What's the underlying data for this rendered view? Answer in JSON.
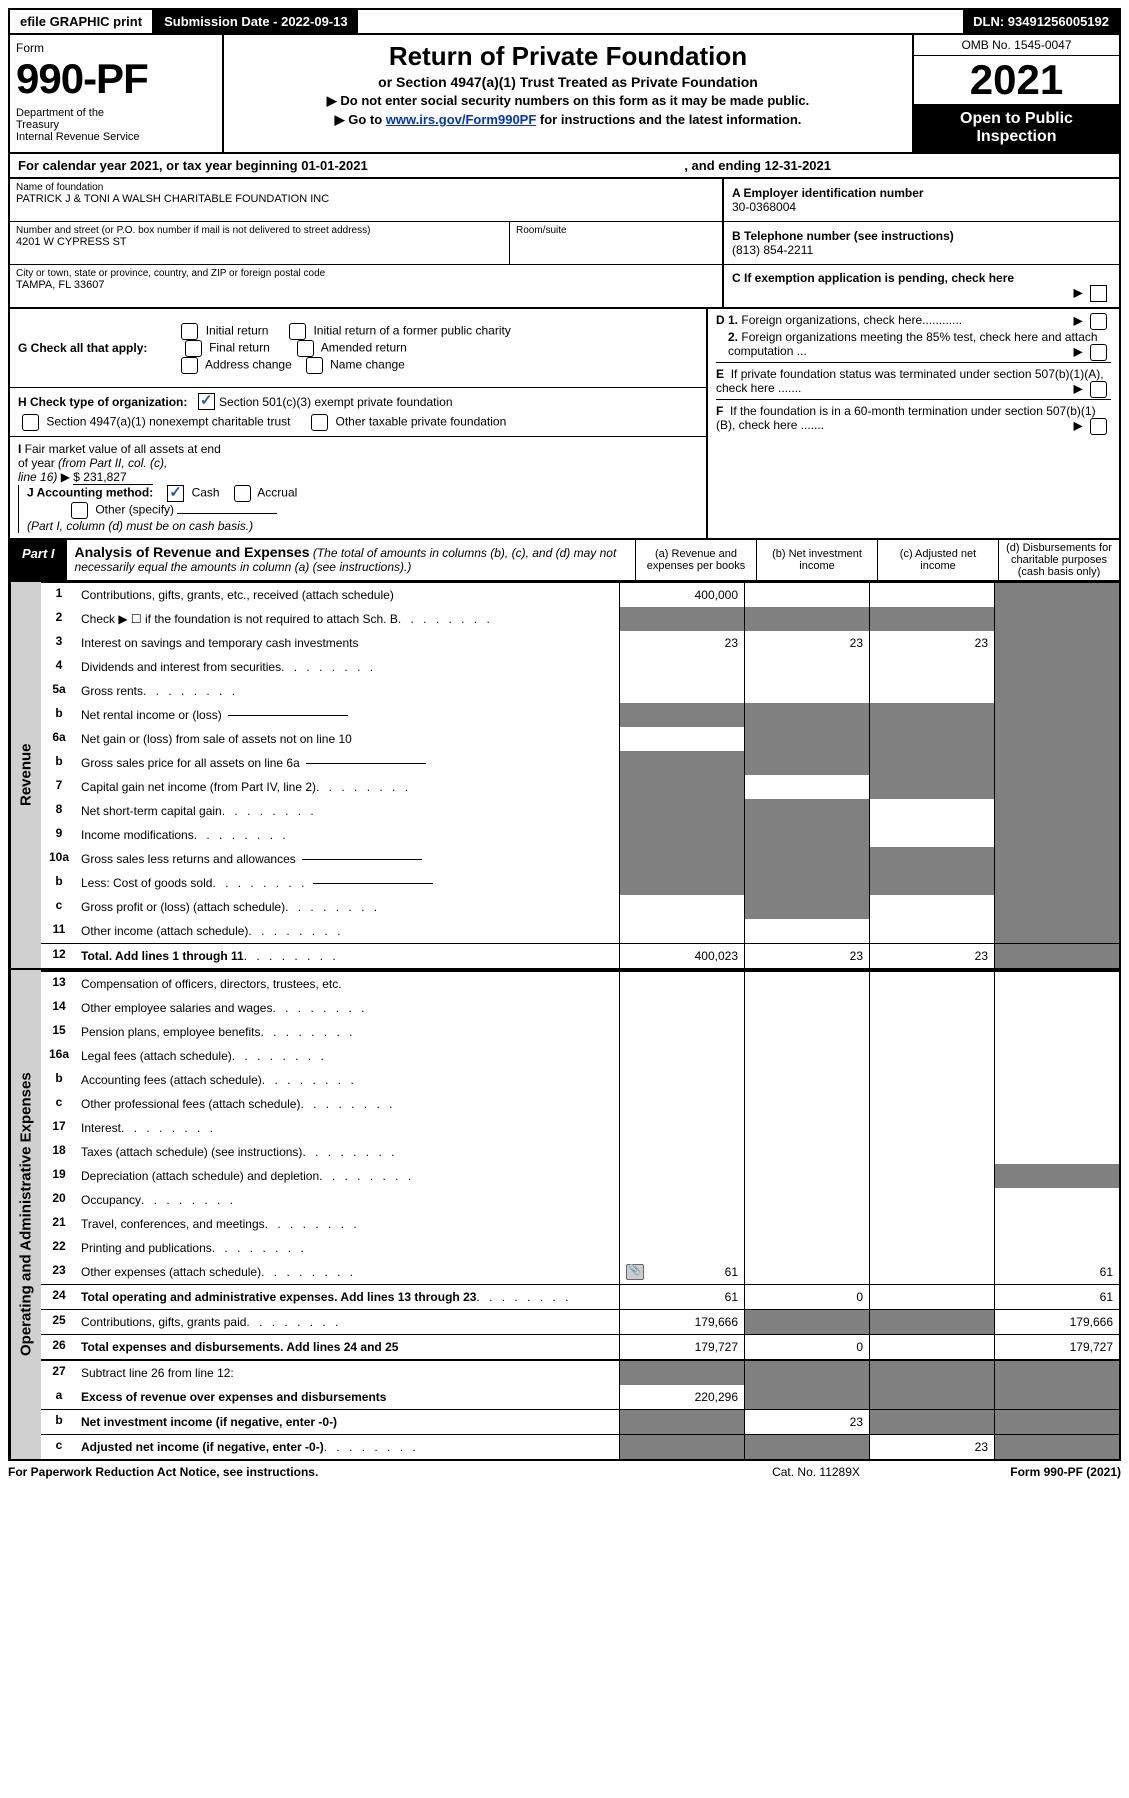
{
  "top_bar": {
    "efile": "efile GRAPHIC print",
    "sub_date_label": "Submission Date - 2022-09-13",
    "dln": "DLN: 93491256005192"
  },
  "header": {
    "form_word": "Form",
    "form_no": "990-PF",
    "dept": "Department of the Treasury\nInternal Revenue Service",
    "title": "Return of Private Foundation",
    "sub1": "or Section 4947(a)(1) Trust Treated as Private Foundation",
    "sub2": "▶ Do not enter social security numbers on this form as it may be made public.",
    "sub3": "▶ Go to www.irs.gov/Form990PF for instructions and the latest information.",
    "irs_link": "www.irs.gov/Form990PF",
    "omb": "OMB No. 1545-0047",
    "year": "2021",
    "open": "Open to Public Inspection"
  },
  "cal_year": {
    "prefix": "For calendar year 2021, or tax year beginning 01-01-2021",
    "mid": ", and ending 12-31-2021"
  },
  "entity": {
    "name_label": "Name of foundation",
    "name": "PATRICK J & TONI A WALSH CHARITABLE FOUNDATION INC",
    "street_label": "Number and street (or P.O. box number if mail is not delivered to street address)",
    "street": "4201 W CYPRESS ST",
    "room_label": "Room/suite",
    "city_label": "City or town, state or province, country, and ZIP or foreign postal code",
    "city": "TAMPA, FL  33607",
    "a_label": "A Employer identification number",
    "a_val": "30-0368004",
    "b_label": "B Telephone number (see instructions)",
    "b_val": "(813) 854-2211",
    "c_label": "C If exemption application is pending, check here"
  },
  "checks": {
    "g_label": "G Check all that apply:",
    "g_opts": [
      "Initial return",
      "Initial return of a former public charity",
      "Final return",
      "Amended return",
      "Address change",
      "Name change"
    ],
    "h_label": "H Check type of organization:",
    "h_opts": [
      "Section 501(c)(3) exempt private foundation",
      "Section 4947(a)(1) nonexempt charitable trust",
      "Other taxable private foundation"
    ],
    "i_label": "I Fair market value of all assets at end of year (from Part II, col. (c), line 16) ▶",
    "i_val": "$  231,827",
    "j_label": "J Accounting method:",
    "j_opts": [
      "Cash",
      "Accrual",
      "Other (specify)"
    ],
    "j_note": "(Part I, column (d) must be on cash basis.)",
    "d_label": "D 1. Foreign organizations, check here............",
    "d2_label": "2. Foreign organizations meeting the 85% test, check here and attach computation ...",
    "e_label": "E  If private foundation status was terminated under section 507(b)(1)(A), check here .......",
    "f_label": "F  If the foundation is in a 60-month termination under section 507(b)(1)(B), check here ......."
  },
  "part1": {
    "label": "Part I",
    "title": "Analysis of Revenue and Expenses",
    "note": "(The total of amounts in columns (b), (c), and (d) may not necessarily equal the amounts in column (a) (see instructions).)",
    "cols": {
      "a": "(a) Revenue and expenses per books",
      "b": "(b) Net investment income",
      "c": "(c) Adjusted net income",
      "d": "(d) Disbursements for charitable purposes (cash basis only)"
    }
  },
  "side_labels": {
    "rev": "Revenue",
    "exp": "Operating and Administrative Expenses"
  },
  "rows": [
    {
      "ln": "1",
      "desc": "Contributions, gifts, grants, etc., received (attach schedule)",
      "a": "400,000",
      "b": "",
      "c": "",
      "d": "",
      "bt": true,
      "shade_d": true
    },
    {
      "ln": "2",
      "desc": "Check ▶ ☐ if the foundation is not required to attach Sch. B",
      "a": "",
      "b": "",
      "c": "",
      "d": "",
      "shade_all": true,
      "dots": true
    },
    {
      "ln": "3",
      "desc": "Interest on savings and temporary cash investments",
      "a": "23",
      "b": "23",
      "c": "23",
      "d": "",
      "shade_d": true
    },
    {
      "ln": "4",
      "desc": "Dividends and interest from securities",
      "a": "",
      "b": "",
      "c": "",
      "d": "",
      "dots": true,
      "shade_d": true
    },
    {
      "ln": "5a",
      "desc": "Gross rents",
      "a": "",
      "b": "",
      "c": "",
      "d": "",
      "dots": true,
      "shade_d": true
    },
    {
      "ln": "b",
      "desc": "Net rental income or (loss)",
      "a": "",
      "b": "",
      "c": "",
      "d": "",
      "inline_box": true,
      "shade_all": true
    },
    {
      "ln": "6a",
      "desc": "Net gain or (loss) from sale of assets not on line 10",
      "a": "",
      "b": "",
      "c": "",
      "d": "",
      "shade_bcd": true
    },
    {
      "ln": "b",
      "desc": "Gross sales price for all assets on line 6a",
      "a": "",
      "b": "",
      "c": "",
      "d": "",
      "inline_box": true,
      "shade_all": true
    },
    {
      "ln": "7",
      "desc": "Capital gain net income (from Part IV, line 2)",
      "a": "",
      "b": "",
      "c": "",
      "d": "",
      "dots": true,
      "shade_a": true,
      "shade_cd": true
    },
    {
      "ln": "8",
      "desc": "Net short-term capital gain",
      "a": "",
      "b": "",
      "c": "",
      "d": "",
      "dots": true,
      "shade_ab": true,
      "shade_d": true
    },
    {
      "ln": "9",
      "desc": "Income modifications",
      "a": "",
      "b": "",
      "c": "",
      "d": "",
      "dots": true,
      "shade_ab": true,
      "shade_d": true
    },
    {
      "ln": "10a",
      "desc": "Gross sales less returns and allowances",
      "a": "",
      "b": "",
      "c": "",
      "d": "",
      "inline_box": true,
      "shade_all": true
    },
    {
      "ln": "b",
      "desc": "Less: Cost of goods sold",
      "a": "",
      "b": "",
      "c": "",
      "d": "",
      "dots": true,
      "inline_box": true,
      "shade_all": true
    },
    {
      "ln": "c",
      "desc": "Gross profit or (loss) (attach schedule)",
      "a": "",
      "b": "",
      "c": "",
      "d": "",
      "dots": true,
      "shade_b": true,
      "shade_d": true
    },
    {
      "ln": "11",
      "desc": "Other income (attach schedule)",
      "a": "",
      "b": "",
      "c": "",
      "d": "",
      "dots": true,
      "shade_d": true
    },
    {
      "ln": "12",
      "desc": "Total. Add lines 1 through 11",
      "a": "400,023",
      "b": "23",
      "c": "23",
      "d": "",
      "dots": true,
      "bold": true,
      "bt": true,
      "shade_d": true
    },
    {
      "ln": "13",
      "desc": "Compensation of officers, directors, trustees, etc.",
      "a": "",
      "b": "",
      "c": "",
      "d": "",
      "btt": true
    },
    {
      "ln": "14",
      "desc": "Other employee salaries and wages",
      "a": "",
      "b": "",
      "c": "",
      "d": "",
      "dots": true
    },
    {
      "ln": "15",
      "desc": "Pension plans, employee benefits",
      "a": "",
      "b": "",
      "c": "",
      "d": "",
      "dots": true
    },
    {
      "ln": "16a",
      "desc": "Legal fees (attach schedule)",
      "a": "",
      "b": "",
      "c": "",
      "d": "",
      "dots": true
    },
    {
      "ln": "b",
      "desc": "Accounting fees (attach schedule)",
      "a": "",
      "b": "",
      "c": "",
      "d": "",
      "dots": true
    },
    {
      "ln": "c",
      "desc": "Other professional fees (attach schedule)",
      "a": "",
      "b": "",
      "c": "",
      "d": "",
      "dots": true
    },
    {
      "ln": "17",
      "desc": "Interest",
      "a": "",
      "b": "",
      "c": "",
      "d": "",
      "dots": true
    },
    {
      "ln": "18",
      "desc": "Taxes (attach schedule) (see instructions)",
      "a": "",
      "b": "",
      "c": "",
      "d": "",
      "dots": true
    },
    {
      "ln": "19",
      "desc": "Depreciation (attach schedule) and depletion",
      "a": "",
      "b": "",
      "c": "",
      "d": "",
      "dots": true,
      "shade_d": true
    },
    {
      "ln": "20",
      "desc": "Occupancy",
      "a": "",
      "b": "",
      "c": "",
      "d": "",
      "dots": true
    },
    {
      "ln": "21",
      "desc": "Travel, conferences, and meetings",
      "a": "",
      "b": "",
      "c": "",
      "d": "",
      "dots": true
    },
    {
      "ln": "22",
      "desc": "Printing and publications",
      "a": "",
      "b": "",
      "c": "",
      "d": "",
      "dots": true
    },
    {
      "ln": "23",
      "desc": "Other expenses (attach schedule)",
      "a": "61",
      "b": "",
      "c": "",
      "d": "61",
      "dots": true,
      "attach_icon": true
    },
    {
      "ln": "24",
      "desc": "Total operating and administrative expenses. Add lines 13 through 23",
      "a": "61",
      "b": "0",
      "c": "",
      "d": "61",
      "dots": true,
      "bold": true,
      "bt": true
    },
    {
      "ln": "25",
      "desc": "Contributions, gifts, grants paid",
      "a": "179,666",
      "b": "",
      "c": "",
      "d": "179,666",
      "dots": true,
      "bt": true,
      "shade_bc": true
    },
    {
      "ln": "26",
      "desc": "Total expenses and disbursements. Add lines 24 and 25",
      "a": "179,727",
      "b": "0",
      "c": "",
      "d": "179,727",
      "bold": true,
      "bt": true
    },
    {
      "ln": "27",
      "desc": "Subtract line 26 from line 12:",
      "a": "",
      "b": "",
      "c": "",
      "d": "",
      "btt": true,
      "shade_all": true
    },
    {
      "ln": "a",
      "desc": "Excess of revenue over expenses and disbursements",
      "a": "220,296",
      "b": "",
      "c": "",
      "d": "",
      "bold": true,
      "shade_bcd": true
    },
    {
      "ln": "b",
      "desc": "Net investment income (if negative, enter -0-)",
      "a": "",
      "b": "23",
      "c": "",
      "d": "",
      "bold": true,
      "bt": true,
      "shade_a": true,
      "shade_cd": true
    },
    {
      "ln": "c",
      "desc": "Adjusted net income (if negative, enter -0-)",
      "a": "",
      "b": "",
      "c": "23",
      "d": "",
      "bold": true,
      "bt": true,
      "dots": true,
      "shade_ab": true,
      "shade_d": true
    }
  ],
  "footer": {
    "left": "For Paperwork Reduction Act Notice, see instructions.",
    "mid": "Cat. No. 11289X",
    "right": "Form 990-PF (2021)"
  }
}
